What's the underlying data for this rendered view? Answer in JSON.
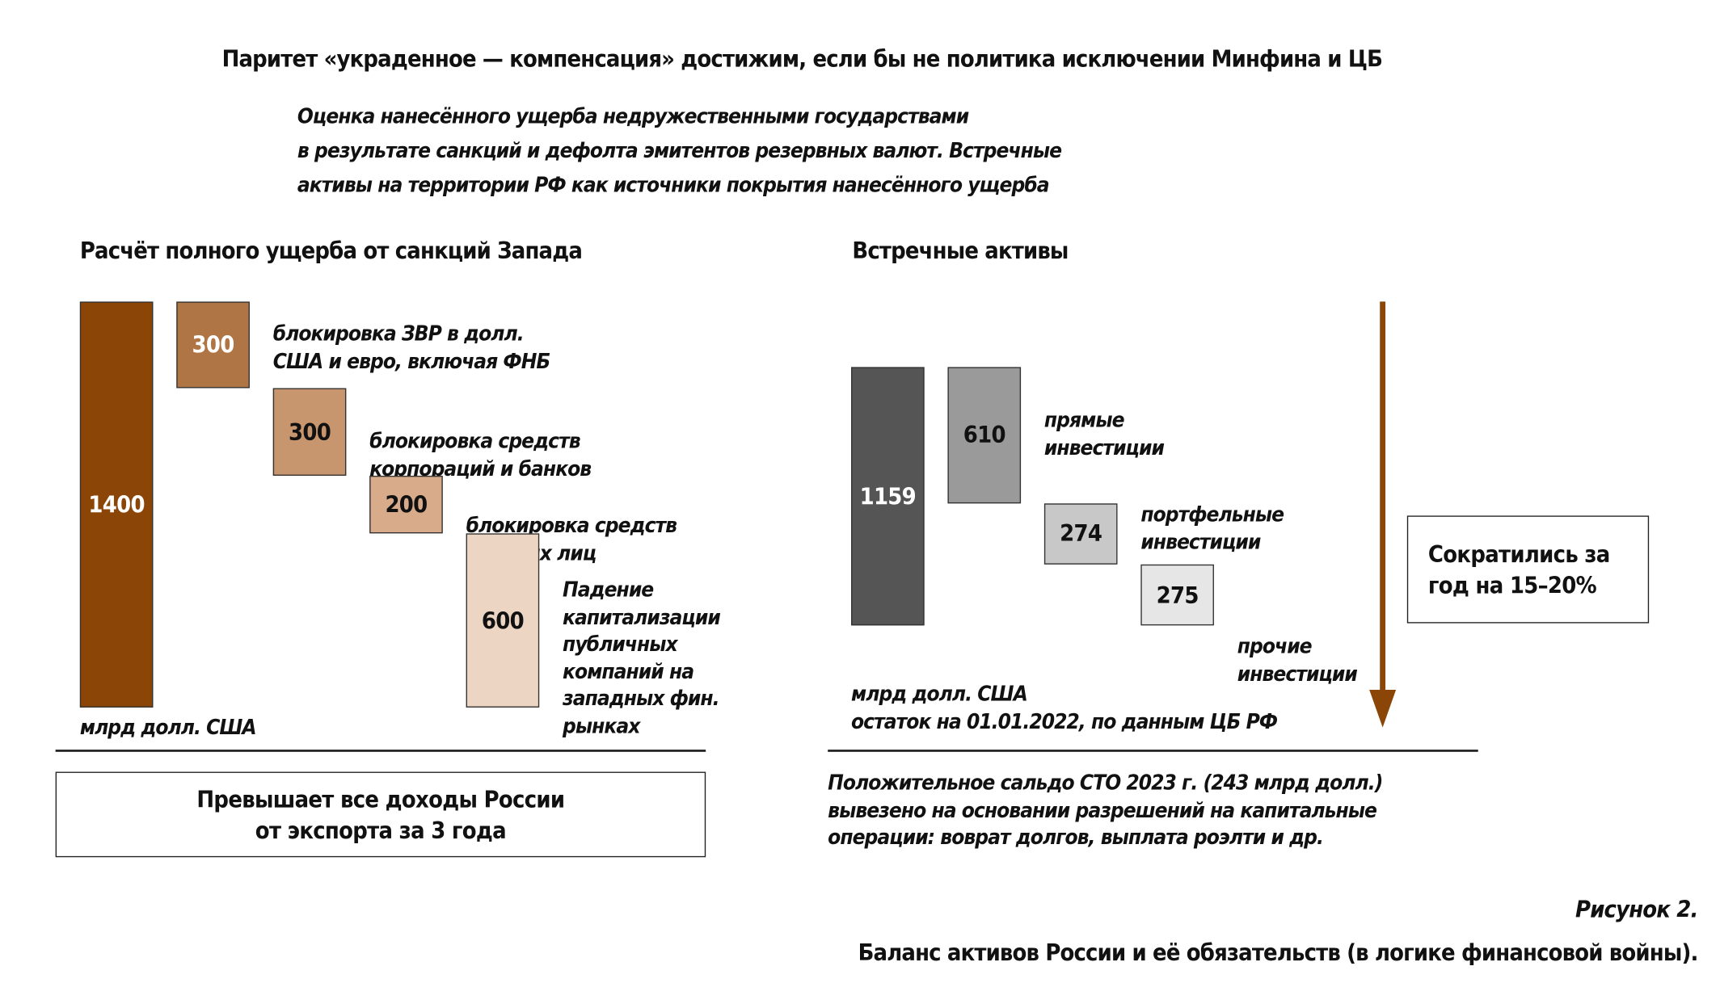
{
  "title": "Паритет «украденное — компенсация» достижим, если бы не политика исключении Минфина и ЦБ",
  "subtitle": [
    "Оценка нанесённого ущерба недружественными государствами",
    "в результате санкций и дефолта эмитентов резервных валют. Встречные",
    "активы на территории РФ как источники покрытия нанесённого ущерба"
  ],
  "figure_number": "Рисунок 2.",
  "figure_caption": "Баланс активов России и её обязательств (в логике финансовой войны).",
  "chart_data": [
    {
      "type": "bar",
      "subtype": "waterfall",
      "title": "Расчёт полного ущерба от санкций Запада",
      "unit": "млрд долл. США",
      "total": {
        "value": 1400,
        "color": "#8b4507"
      },
      "components": [
        {
          "value": 300,
          "label": [
            "блокировка ЗВР в долл.",
            "США и евро, включая ФНБ"
          ],
          "color": "#b07545"
        },
        {
          "value": 300,
          "label": [
            "блокировка средств",
            "корпораций и банков"
          ],
          "color": "#c8966e"
        },
        {
          "value": 200,
          "label": [
            "блокировка средств",
            "частных лиц"
          ],
          "color": "#d8ab8b"
        },
        {
          "value": 600,
          "label": [
            "Падение",
            "капитализации",
            "публичных",
            "компаний на",
            "западных фин.",
            "рынках"
          ],
          "color": "#ecd5c3"
        }
      ],
      "note_box": [
        "Превышает все доходы России",
        "от экспорта за 3 года"
      ]
    },
    {
      "type": "bar",
      "subtype": "waterfall",
      "title": "Встречные активы",
      "unit": "млрд долл. США",
      "unit_note": "остаток на 01.01.2022, по данным ЦБ РФ",
      "total": {
        "value": 1159,
        "color": "#555555"
      },
      "components": [
        {
          "value": 610,
          "label": [
            "прямые",
            "инвестиции"
          ],
          "color": "#9a9a9a"
        },
        {
          "value": 274,
          "label": [
            "портфельные",
            "инвестиции"
          ],
          "color": "#c8c8c8"
        },
        {
          "value": 275,
          "label": [
            "прочие",
            "инвестиции"
          ],
          "color": "#e6e6e6"
        }
      ],
      "arrow_color": "#8b4507",
      "side_box": [
        "Сократились за",
        "год на 15–20%"
      ],
      "note": [
        "Положительное сальдо СТО 2023 г. (243 млрд долл.)",
        "вывезено на основании разрешений на капитальные",
        "операции: воврат долгов, выплата роэлти и др."
      ]
    }
  ]
}
